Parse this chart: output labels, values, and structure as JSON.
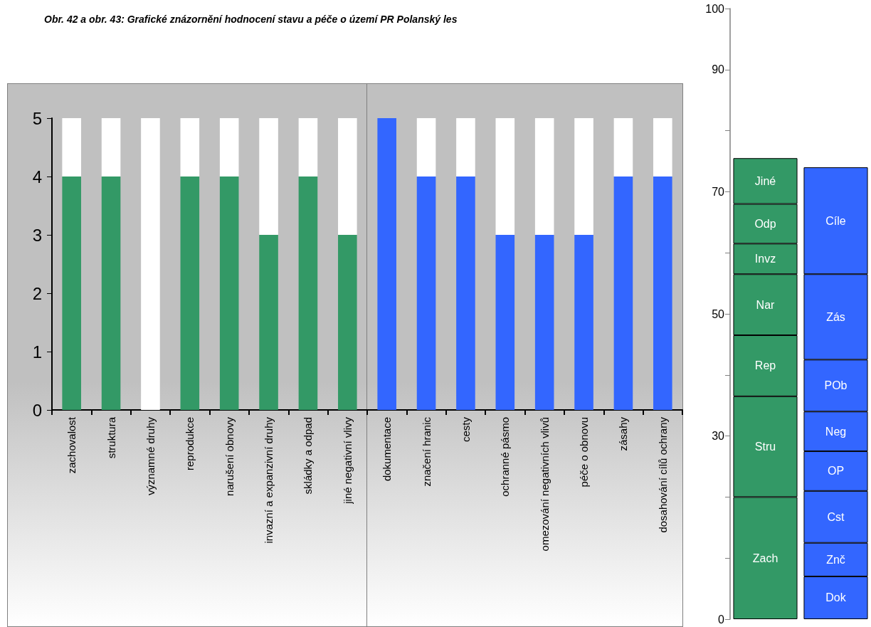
{
  "chart_data": [
    {
      "type": "bar",
      "title": "Obr. 42 a obr. 43: Grafické znázornění hodnocení stavu a péče o území PR Polanský les",
      "stacked": true,
      "grid": false,
      "legend": false,
      "categories": [
        "zachovalost",
        "struktura",
        "významné druhy",
        "reprodukce",
        "narušení obnovy",
        "invazní a expanzivní druhy",
        "skládky a odpad",
        "jiné negativní vlivy",
        "dokumentace",
        "značení hranic",
        "cesty",
        "ochranné pásmo",
        "omezování negativních vlivů",
        "péče o obnovu",
        "zásahy",
        "dosahování cílů ochrany"
      ],
      "series": [
        {
          "color": "#339966",
          "values": [
            4,
            4,
            0,
            4,
            4,
            3,
            4,
            3,
            null,
            null,
            null,
            null,
            null,
            null,
            null,
            null
          ]
        },
        {
          "color": "#3366ff",
          "values": [
            null,
            null,
            null,
            null,
            null,
            null,
            null,
            null,
            5,
            4,
            4,
            3,
            3,
            3,
            4,
            4
          ]
        },
        {
          "color": "#ffffff",
          "values": [
            1,
            1,
            5,
            1,
            1,
            2,
            1,
            2,
            0,
            1,
            1,
            2,
            2,
            2,
            1,
            1
          ]
        }
      ],
      "ylim": [
        0,
        5
      ],
      "yticks": [
        0,
        1,
        2,
        3,
        4,
        5
      ]
    },
    {
      "type": "bar",
      "stacked": true,
      "grid": false,
      "legend": false,
      "categories": [
        null,
        null
      ],
      "series": [
        {
          "name": "Zach",
          "color": "#339966",
          "values": [
            20,
            null
          ]
        },
        {
          "name": "Stru",
          "color": "#339966",
          "values": [
            16.5,
            null
          ]
        },
        {
          "name": "Rep",
          "color": "#339966",
          "values": [
            10,
            null
          ]
        },
        {
          "name": "Nar",
          "color": "#339966",
          "values": [
            10,
            null
          ]
        },
        {
          "name": "Invz",
          "color": "#339966",
          "values": [
            5,
            null
          ]
        },
        {
          "name": "Odp",
          "color": "#339966",
          "values": [
            6.5,
            null
          ]
        },
        {
          "name": "Jiné",
          "color": "#339966",
          "values": [
            7.5,
            null
          ]
        },
        {
          "name": "Dok",
          "color": "#3366ff",
          "values": [
            null,
            7
          ]
        },
        {
          "name": "Znč",
          "color": "#3366ff",
          "values": [
            null,
            5.5
          ]
        },
        {
          "name": "Cst",
          "color": "#3366ff",
          "values": [
            null,
            8.5
          ]
        },
        {
          "name": "OP",
          "color": "#3366ff",
          "values": [
            null,
            6.5
          ]
        },
        {
          "name": "Neg",
          "color": "#3366ff",
          "values": [
            null,
            6.5
          ]
        },
        {
          "name": "POb",
          "color": "#3366ff",
          "values": [
            null,
            8.5
          ]
        },
        {
          "name": "Zás",
          "color": "#3366ff",
          "values": [
            null,
            14
          ]
        },
        {
          "name": "Cíle",
          "color": "#3366ff",
          "values": [
            null,
            17.5
          ]
        }
      ],
      "ylim": [
        0,
        100
      ],
      "yticks": [
        0,
        {
          "value": 10,
          "label": null
        },
        {
          "value": 20,
          "label": null
        },
        30,
        {
          "value": 40,
          "label": null
        },
        50,
        {
          "value": 60,
          "label": null
        },
        70,
        {
          "value": 80,
          "label": null
        },
        90,
        100
      ]
    }
  ]
}
